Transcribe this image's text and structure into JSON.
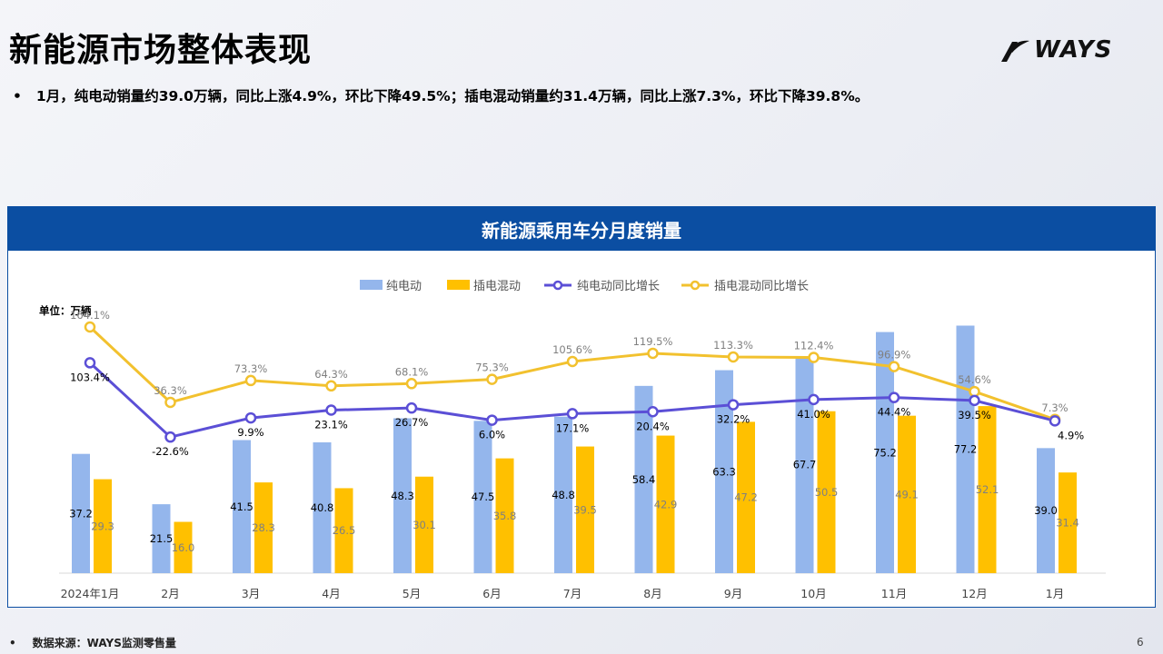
{
  "slide": {
    "title": "新能源市场整体表现",
    "logo_text": "WAYS",
    "bullet": "1月，纯电动销量约39.0万辆，同比上涨4.9%，环比下降49.5%；插电混动销量约31.4万辆，同比上涨7.3%，环比下降39.8%。",
    "bullet_marker": "•",
    "footer_marker": "•",
    "footer": "数据来源：WAYS监测零售量",
    "page_number": "6"
  },
  "colors": {
    "header_bg": "#0b4ea2",
    "bev_bar": "#94b6ec",
    "phev_bar": "#ffc000",
    "bev_line": "#5b4fd6",
    "phev_line": "#f2c12e"
  },
  "chart_data": {
    "type": "bar",
    "title": "新能源乘用车分月度销量",
    "unit_label": "单位：万辆",
    "categories": [
      "2024年1月",
      "2月",
      "3月",
      "4月",
      "5月",
      "6月",
      "7月",
      "8月",
      "9月",
      "10月",
      "11月",
      "12月",
      "1月"
    ],
    "series": [
      {
        "name": "纯电动",
        "type": "bar",
        "values": [
          37.2,
          21.5,
          41.5,
          40.8,
          48.3,
          47.5,
          48.8,
          58.4,
          63.3,
          67.7,
          75.2,
          77.2,
          39.0
        ]
      },
      {
        "name": "插电混动",
        "type": "bar",
        "values": [
          29.3,
          16.0,
          28.3,
          26.5,
          30.1,
          35.8,
          39.5,
          42.9,
          47.2,
          50.5,
          49.1,
          52.1,
          31.4
        ]
      },
      {
        "name": "纯电动同比增长",
        "type": "line",
        "unit": "%",
        "values": [
          103.4,
          -22.6,
          9.9,
          23.1,
          26.7,
          6.0,
          17.1,
          20.4,
          32.2,
          41.0,
          44.4,
          39.5,
          4.9
        ]
      },
      {
        "name": "插电混动同比增长",
        "type": "line",
        "unit": "%",
        "values": [
          164.1,
          36.3,
          73.3,
          64.3,
          68.1,
          75.3,
          105.6,
          119.5,
          113.3,
          112.4,
          96.9,
          54.6,
          7.3
        ]
      }
    ],
    "legend_position": "top-center",
    "grid": false
  }
}
